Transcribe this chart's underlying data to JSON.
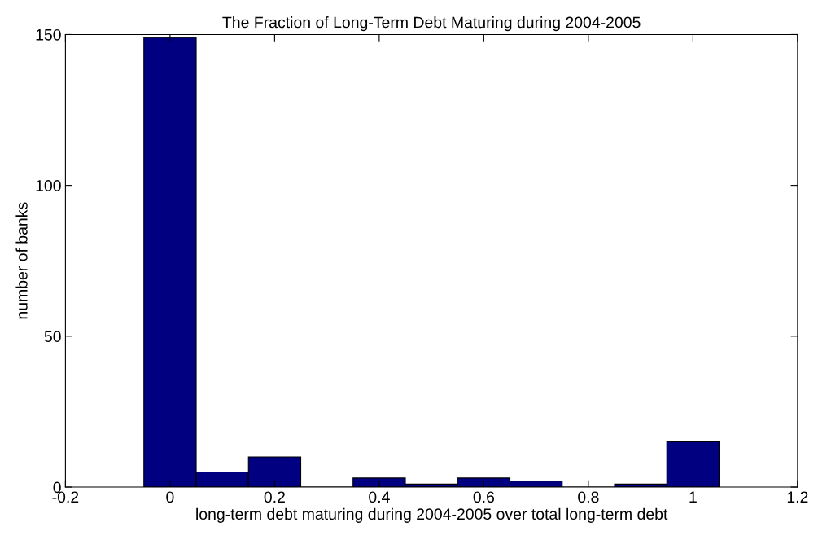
{
  "chart_data": {
    "type": "histogram",
    "title": "The Fraction of Long-Term Debt Maturing during 2004-2005",
    "xlabel": "long-term debt maturing during 2004-2005 over total long-term debt",
    "ylabel": "number of banks",
    "bins": [
      -0.05,
      0.05,
      0.15,
      0.25,
      0.35,
      0.45,
      0.55,
      0.65,
      0.75,
      0.85,
      0.95,
      1.05
    ],
    "values": [
      149,
      5,
      10,
      0,
      3,
      1,
      3,
      2,
      0,
      1,
      15
    ],
    "color": "#000080",
    "xlim": [
      -0.2,
      1.2
    ],
    "xticks": [
      {
        "value": -0.2,
        "label": "-0.2"
      },
      0,
      0.2,
      0.4,
      0.6,
      0.8,
      1,
      1.2
    ],
    "ylim": [
      0,
      150
    ],
    "yticks": [
      0,
      50,
      100,
      150
    ],
    "grid": false
  }
}
